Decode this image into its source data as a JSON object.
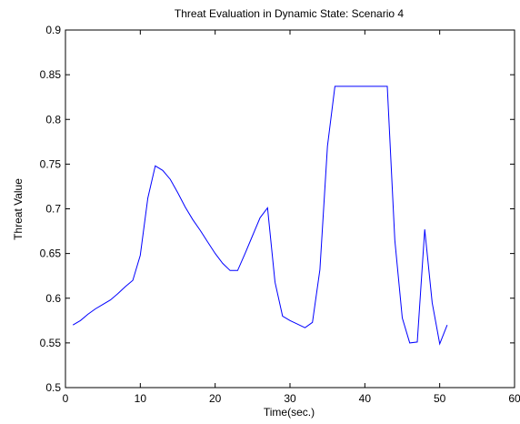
{
  "chart_data": {
    "type": "line",
    "title": "Threat Evaluation in Dynamic State: Scenario 4",
    "xlabel": "Time(sec.)",
    "ylabel": "Threat Value",
    "xlim": [
      0,
      60
    ],
    "ylim": [
      0.5,
      0.9
    ],
    "xticks": [
      0,
      10,
      20,
      30,
      40,
      50,
      60
    ],
    "xtick_labels": [
      "0",
      "10",
      "20",
      "30",
      "40",
      "50",
      "60"
    ],
    "yticks": [
      0.5,
      0.55,
      0.6,
      0.65,
      0.7,
      0.75,
      0.8,
      0.85,
      0.9
    ],
    "ytick_labels": [
      "0.5",
      "0.55",
      "0.6",
      "0.65",
      "0.7",
      "0.75",
      "0.8",
      "0.85",
      "0.9"
    ],
    "grid": false,
    "series": [
      {
        "color": "#0000ff",
        "x": [
          1,
          2,
          3,
          4,
          5,
          6,
          7,
          8,
          9,
          10,
          11,
          12,
          13,
          14,
          15,
          16,
          17,
          18,
          19,
          20,
          21,
          22,
          23,
          24,
          25,
          26,
          27,
          28,
          29,
          30,
          31,
          32,
          33,
          34,
          35,
          36,
          37,
          38,
          39,
          40,
          41,
          42,
          43,
          44,
          45,
          46,
          47,
          48,
          49,
          50,
          51
        ],
        "y": [
          0.57,
          0.575,
          0.582,
          0.588,
          0.593,
          0.598,
          0.605,
          0.613,
          0.62,
          0.648,
          0.712,
          0.748,
          0.743,
          0.733,
          0.718,
          0.702,
          0.688,
          0.676,
          0.663,
          0.65,
          0.639,
          0.631,
          0.631,
          0.65,
          0.67,
          0.69,
          0.701,
          0.618,
          0.58,
          0.575,
          0.571,
          0.567,
          0.573,
          0.632,
          0.77,
          0.837,
          0.837,
          0.837,
          0.837,
          0.837,
          0.837,
          0.837,
          0.837,
          0.665,
          0.578,
          0.55,
          0.551,
          0.677,
          0.595,
          0.549,
          0.57
        ]
      }
    ]
  }
}
